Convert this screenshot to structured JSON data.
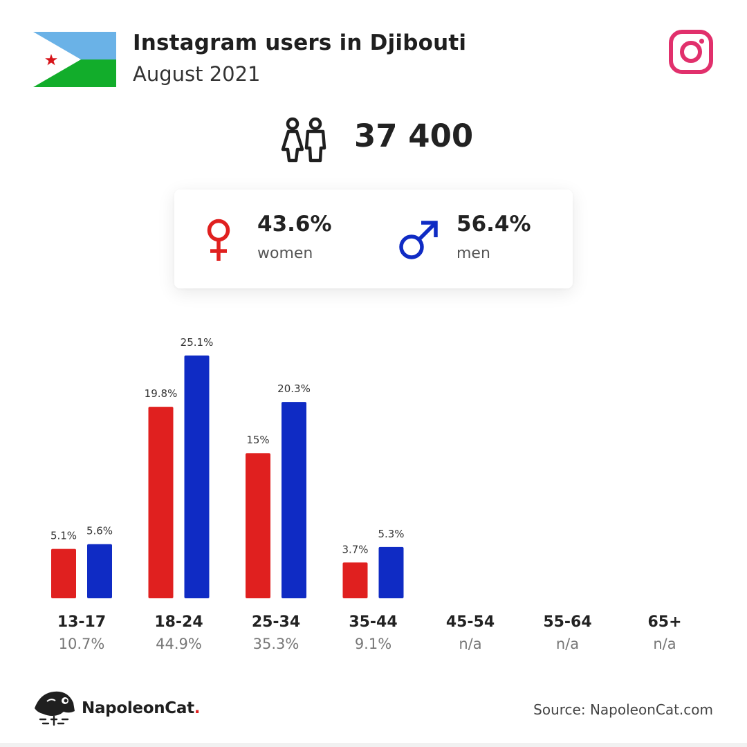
{
  "header": {
    "title": "Instagram users in Djibouti",
    "subtitle": "August 2021",
    "flag_icon": "djibouti-flag",
    "platform_icon": "instagram-icon"
  },
  "total": {
    "icon": "people-icon",
    "value": "37 400"
  },
  "gender": {
    "women": {
      "pct": "43.6%",
      "label": "women",
      "icon": "female-icon",
      "color": "#e0201f"
    },
    "men": {
      "pct": "56.4%",
      "label": "men",
      "icon": "male-icon",
      "color": "#0f2bc4"
    }
  },
  "chart_data": {
    "type": "bar",
    "categories": [
      "13-17",
      "18-24",
      "25-34",
      "35-44",
      "45-54",
      "55-64",
      "65+"
    ],
    "group_totals": [
      "10.7%",
      "44.9%",
      "35.3%",
      "9.1%",
      "n/a",
      "n/a",
      "n/a"
    ],
    "series": [
      {
        "color": "#e0201f",
        "values": [
          5.1,
          19.8,
          15,
          3.7,
          null,
          null,
          null
        ],
        "labels": [
          "5.1%",
          "19.8%",
          "15%",
          "3.7%",
          "",
          "",
          ""
        ]
      },
      {
        "color": "#0f2bc4",
        "values": [
          5.6,
          25.1,
          20.3,
          5.3,
          null,
          null,
          null
        ],
        "labels": [
          "5.6%",
          "25.1%",
          "20.3%",
          "5.3%",
          "",
          "",
          ""
        ]
      }
    ],
    "ylim": [
      0,
      25.1
    ],
    "grid": false,
    "legend": "none"
  },
  "footer": {
    "brand": "NapoleonCat",
    "brand_dot": ".",
    "logo_icon": "napoleoncat-logo",
    "source": "Source: NapoleonCat.com"
  }
}
